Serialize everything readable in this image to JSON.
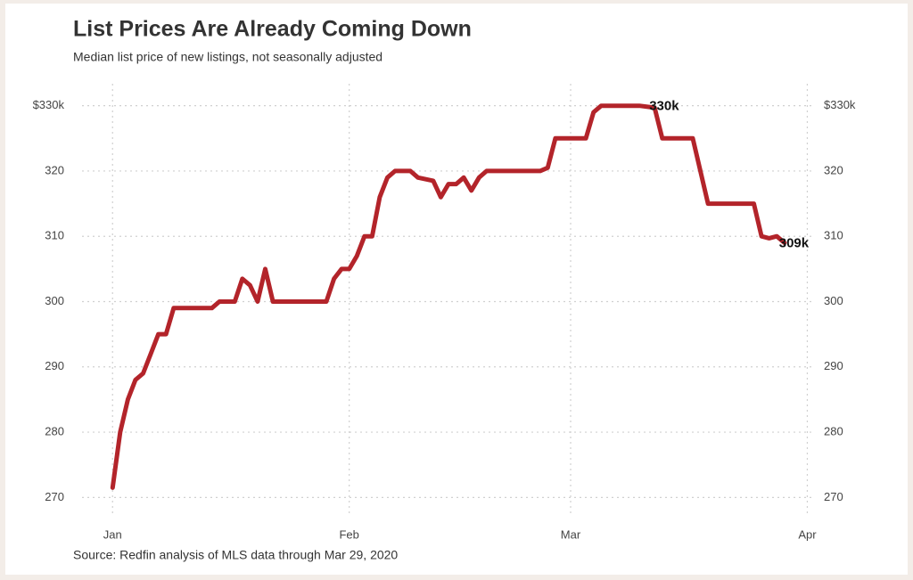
{
  "chart_data": {
    "type": "line",
    "title": "List Prices Are Already Coming Down",
    "subtitle": "Median list price of new listings, not seasonally adjusted",
    "source": "Source: Redfin analysis of MLS data through Mar 29, 2020",
    "x": [
      1,
      2,
      3,
      4,
      5,
      6,
      7,
      8,
      9,
      14,
      15,
      17,
      18,
      19,
      20,
      21,
      22,
      29,
      30,
      31,
      32,
      33,
      34,
      35,
      36,
      37,
      38,
      40,
      41,
      43,
      44,
      45,
      46,
      47,
      48,
      49,
      50,
      57,
      58,
      59,
      63,
      64,
      65,
      70,
      72,
      73,
      77,
      79,
      84,
      85,
      86,
      87,
      88,
      89
    ],
    "series": [
      {
        "name": "Median list price",
        "color": "#b3242a",
        "values": [
          271.5,
          280,
          285,
          288,
          289,
          292,
          295,
          295,
          299,
          299,
          300,
          300,
          303.5,
          302.5,
          300,
          305,
          300,
          300,
          303.5,
          305,
          305,
          307,
          310,
          310,
          316,
          319,
          320,
          320,
          319,
          318.5,
          316,
          318,
          318,
          319,
          317,
          319,
          320,
          320,
          320.5,
          325,
          325,
          329,
          330,
          330,
          329.7,
          325,
          325,
          315,
          315,
          315,
          310,
          309.7,
          310,
          309
        ]
      }
    ],
    "xlim": [
      -3,
      93
    ],
    "xticks": [
      {
        "value": 1,
        "label": "Jan"
      },
      {
        "value": 32,
        "label": "Feb"
      },
      {
        "value": 61,
        "label": "Mar"
      },
      {
        "value": 92,
        "label": "Apr"
      }
    ],
    "ylim": [
      268,
      332
    ],
    "yticks": [
      270,
      280,
      290,
      300,
      310,
      320,
      {
        "value": 330,
        "label": "$330k"
      }
    ],
    "grid": true,
    "annotations": [
      {
        "text": "330k",
        "x": 72,
        "y": 330
      },
      {
        "text": "309k",
        "x": 89,
        "y": 309
      }
    ]
  }
}
